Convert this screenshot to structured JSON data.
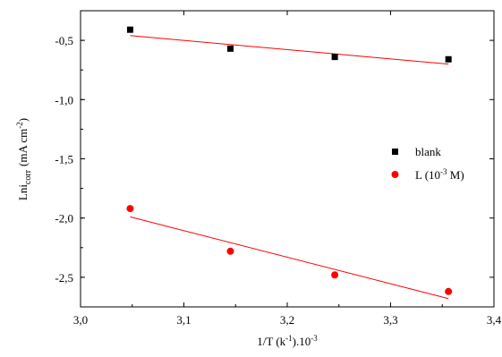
{
  "chart_data": {
    "type": "scatter",
    "title": "",
    "xlabel_main": "1/T (k",
    "xlabel_sup1": "-1",
    "xlabel_mid": ").10",
    "xlabel_sup2": "-3",
    "ylabel_main": "Lni",
    "ylabel_sub": "corr",
    "ylabel_unit": "(mA cm",
    "ylabel_sup": "-2",
    "ylabel_close": ")",
    "xlim": [
      3.0,
      3.4
    ],
    "ylim": [
      -2.75,
      -0.25
    ],
    "xticks": [
      3.0,
      3.1,
      3.2,
      3.3,
      3.4
    ],
    "xtick_labels": [
      "3,0",
      "3,1",
      "3,2",
      "3,3",
      "3,4"
    ],
    "yticks": [
      -0.5,
      -1.0,
      -1.5,
      -2.0,
      -2.5
    ],
    "ytick_labels": [
      "-0,5",
      "-1,0",
      "-1,5",
      "-2,0",
      "-2,5"
    ],
    "grid": false,
    "legend_position": "right",
    "series": [
      {
        "name": "blank",
        "legend_label": "blank",
        "marker": "square",
        "color": "#000000",
        "points": [
          {
            "x": 3.048,
            "y": -0.41
          },
          {
            "x": 3.145,
            "y": -0.57
          },
          {
            "x": 3.246,
            "y": -0.64
          },
          {
            "x": 3.356,
            "y": -0.66
          }
        ],
        "fit": {
          "x0": 3.048,
          "y0": -0.46,
          "x1": 3.356,
          "y1": -0.7,
          "color": "#ff0000"
        }
      },
      {
        "name": "L",
        "legend_label": "L (10",
        "legend_sup": "-3",
        "legend_close": " M)",
        "marker": "circle",
        "color": "#ff0000",
        "points": [
          {
            "x": 3.048,
            "y": -1.92
          },
          {
            "x": 3.145,
            "y": -2.28
          },
          {
            "x": 3.246,
            "y": -2.48
          },
          {
            "x": 3.356,
            "y": -2.62
          }
        ],
        "fit": {
          "x0": 3.048,
          "y0": -1.99,
          "x1": 3.356,
          "y1": -2.68,
          "color": "#ff0000"
        }
      }
    ]
  }
}
